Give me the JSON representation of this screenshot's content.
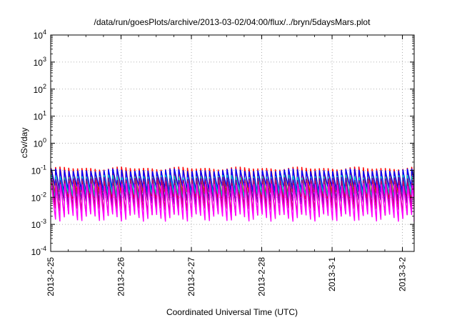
{
  "chart_data": {
    "type": "line",
    "title": "/data/run/goesPlots/archive/2013-03-02/04:00/flux/../bryn/5daysMars.plot",
    "xlabel": "Coordinated Universal Time (UTC)",
    "ylabel": "cSv/day",
    "yscale": "log",
    "ylim": [
      0.0001,
      10000
    ],
    "xlim": [
      "2013-02-25T00:00",
      "2013-03-02T04:00"
    ],
    "grid": true,
    "x_ticks": [
      "2013-2-25",
      "2013-2-26",
      "2013-2-27",
      "2013-2-28",
      "2013-3-1",
      "2013-3-2"
    ],
    "y_ticks": [
      {
        "base": "10",
        "exp": "-4",
        "value": 0.0001
      },
      {
        "base": "10",
        "exp": "-3",
        "value": 0.001
      },
      {
        "base": "10",
        "exp": "-2",
        "value": 0.01
      },
      {
        "base": "10",
        "exp": "-1",
        "value": 0.1
      },
      {
        "base": "10",
        "exp": "0",
        "value": 1
      },
      {
        "base": "10",
        "exp": "1",
        "value": 10
      },
      {
        "base": "10",
        "exp": "2",
        "value": 100
      },
      {
        "base": "10",
        "exp": "3",
        "value": 1000
      },
      {
        "base": "10",
        "exp": "4",
        "value": 10000
      }
    ],
    "pattern": {
      "period_hours": 1.5,
      "description_values": "sawtooth: sharp rise then decay within each orbit period"
    },
    "series": [
      {
        "color": "#ff0000",
        "peak": 0.12,
        "trough": 0.012
      },
      {
        "color": "#0000ff",
        "peak": 0.1,
        "trough": 0.02
      },
      {
        "color": "#00cccc",
        "peak": 0.06,
        "trough": 0.01
      },
      {
        "color": "#6600aa",
        "peak": 0.05,
        "trough": 0.006
      },
      {
        "color": "#cc0066",
        "peak": 0.04,
        "trough": 0.003
      },
      {
        "color": "#ff00ff",
        "peak": 0.03,
        "trough": 0.0018
      }
    ]
  }
}
